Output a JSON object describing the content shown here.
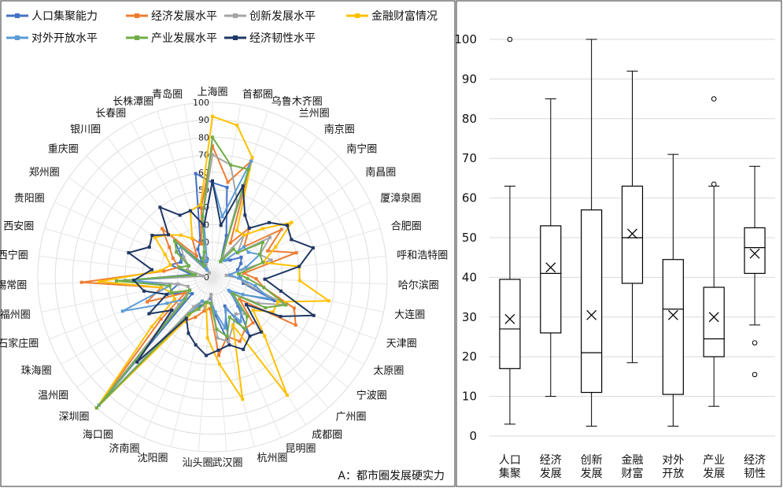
{
  "chart_data": [
    {
      "type": "radar",
      "caption": "A：都市圈发展硬实力",
      "r_range": [
        0,
        100
      ],
      "r_ticks": [
        "0",
        "10",
        "20",
        "30",
        "40",
        "50",
        "60",
        "70",
        "80",
        "90",
        "100"
      ],
      "categories": [
        "上海圈",
        "首都圈",
        "乌鲁木齐圈",
        "兰州圈",
        "南京圈",
        "南宁圈",
        "南昌圈",
        "厦漳泉圈",
        "合肥圈",
        "呼和浩特圈",
        "哈尔滨圈",
        "大连圈",
        "天津圈",
        "太原圈",
        "宁波圈",
        "广州圈",
        "成都圈",
        "昆明圈",
        "杭州圈",
        "武汉圈",
        "汕头圈",
        "沈阳圈",
        "济南圈",
        "海口圈",
        "深圳圈",
        "温州圈",
        "珠海圈",
        "石家庄圈",
        "福州圈",
        "苏锡常圈",
        "西宁圈",
        "西安圈",
        "贵阳圈",
        "郑州圈",
        "重庆圈",
        "银川圈",
        "长春圈",
        "长株潭圈",
        "青岛圈"
      ],
      "series": [
        {
          "name": "人口集聚能力",
          "color": "#4472C4",
          "values": [
            54,
            52,
            25,
            10,
            12,
            14,
            20,
            18,
            15,
            15,
            16,
            18,
            38,
            20,
            13,
            22,
            40,
            18,
            38,
            22,
            12,
            15,
            18,
            25,
            98,
            15,
            18,
            28,
            20,
            50,
            12,
            25,
            20,
            22,
            30,
            10,
            18,
            22,
            60
          ]
        },
        {
          "name": "经济发展水平",
          "color": "#ED7D31",
          "values": [
            75,
            55,
            70,
            22,
            35,
            25,
            48,
            35,
            50,
            18,
            25,
            30,
            50,
            55,
            20,
            35,
            35,
            40,
            35,
            45,
            18,
            20,
            25,
            30,
            100,
            38,
            18,
            40,
            30,
            75,
            28,
            20,
            25,
            30,
            40,
            15,
            25,
            20,
            40
          ]
        },
        {
          "name": "创新发展水平",
          "color": "#A5A5A5",
          "values": [
            70,
            65,
            45,
            12,
            30,
            20,
            40,
            30,
            35,
            8,
            15,
            20,
            45,
            30,
            15,
            28,
            25,
            30,
            38,
            35,
            10,
            18,
            15,
            20,
            100,
            25,
            15,
            15,
            20,
            55,
            5,
            15,
            15,
            20,
            25,
            3,
            8,
            15,
            35
          ]
        },
        {
          "name": "金融财富情况",
          "color": "#FFC000",
          "values": [
            92,
            88,
            72,
            30,
            30,
            40,
            55,
            40,
            30,
            50,
            50,
            68,
            40,
            40,
            30,
            45,
            80,
            30,
            72,
            50,
            35,
            15,
            15,
            30,
            100,
            45,
            25,
            25,
            30,
            65,
            30,
            25,
            30,
            40,
            35,
            30,
            25,
            40,
            42
          ]
        },
        {
          "name": "对外开放水平",
          "color": "#5B9BD5",
          "values": [
            55,
            35,
            70,
            10,
            12,
            25,
            25,
            30,
            20,
            10,
            15,
            25,
            35,
            20,
            12,
            25,
            30,
            20,
            30,
            20,
            15,
            15,
            15,
            25,
            98,
            20,
            30,
            55,
            25,
            45,
            10,
            20,
            15,
            25,
            25,
            5,
            10,
            10,
            30
          ]
        },
        {
          "name": "产业发展水平",
          "color": "#70AD47",
          "values": [
            80,
            65,
            65,
            10,
            20,
            20,
            35,
            30,
            30,
            15,
            20,
            30,
            45,
            35,
            15,
            30,
            35,
            25,
            35,
            30,
            15,
            15,
            20,
            25,
            100,
            20,
            15,
            25,
            25,
            55,
            10,
            20,
            15,
            25,
            30,
            8,
            12,
            15,
            35
          ]
        },
        {
          "name": "经济韧性水平",
          "color": "#203864",
          "values": [
            55,
            30,
            55,
            40,
            35,
            45,
            52,
            50,
            60,
            50,
            30,
            40,
            62,
            45,
            25,
            42,
            40,
            45,
            40,
            42,
            45,
            40,
            35,
            28,
            65,
            30,
            42,
            28,
            40,
            45,
            35,
            50,
            40,
            42,
            35,
            50,
            40,
            40,
            30
          ]
        }
      ]
    },
    {
      "type": "boxplot",
      "ylim": [
        0,
        100
      ],
      "yticks": [
        "0",
        "10",
        "20",
        "30",
        "40",
        "50",
        "60",
        "70",
        "80",
        "90",
        "100"
      ],
      "categories": [
        [
          "人口",
          "集聚"
        ],
        [
          "经济",
          "发展"
        ],
        [
          "创新",
          "发展"
        ],
        [
          "金融",
          "财富"
        ],
        [
          "对外",
          "开放"
        ],
        [
          "产业",
          "发展"
        ],
        [
          "经济",
          "韧性"
        ]
      ],
      "boxes": [
        {
          "whisker_low": 3,
          "q1": 17,
          "median": 27,
          "q3": 39.5,
          "whisker_high": 63,
          "mean": 29.5,
          "outliers": [
            100
          ]
        },
        {
          "whisker_low": 10,
          "q1": 26,
          "median": 41,
          "q3": 53,
          "whisker_high": 85,
          "mean": 42.5,
          "outliers": []
        },
        {
          "whisker_low": 2.5,
          "q1": 11,
          "median": 21,
          "q3": 57,
          "whisker_high": 100,
          "mean": 30.5,
          "outliers": []
        },
        {
          "whisker_low": 18.5,
          "q1": 38.5,
          "median": 50,
          "q3": 63,
          "whisker_high": 92,
          "mean": 51,
          "outliers": []
        },
        {
          "whisker_low": 2.5,
          "q1": 10.5,
          "median": 32,
          "q3": 44.5,
          "whisker_high": 71,
          "mean": 30.5,
          "outliers": []
        },
        {
          "whisker_low": 7.5,
          "q1": 20,
          "median": 24.5,
          "q3": 37.5,
          "whisker_high": 63,
          "mean": 30,
          "outliers": [
            63.5,
            85
          ]
        },
        {
          "whisker_low": 28,
          "q1": 41,
          "median": 47.5,
          "q3": 52.5,
          "whisker_high": 68,
          "mean": 46,
          "outliers": [
            23.5,
            15.5
          ]
        }
      ]
    }
  ]
}
